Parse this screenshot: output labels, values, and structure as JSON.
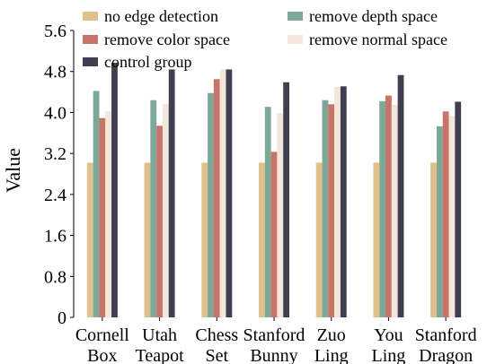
{
  "chart_data": {
    "type": "bar",
    "ylabel": "Value",
    "xlabel": "",
    "title": "",
    "ylim": [
      0,
      5.6
    ],
    "yticks": [
      "0",
      "0.8",
      "1.6",
      "2.4",
      "3.2",
      "4.0",
      "4.8",
      "5.6"
    ],
    "categories": [
      [
        "Cornell",
        "Box"
      ],
      [
        "Utah",
        "Teapot"
      ],
      [
        "Chess",
        "Set"
      ],
      [
        "Stanford",
        "Bunny"
      ],
      [
        "Zuo",
        "Ling"
      ],
      [
        "You",
        "Ling"
      ],
      [
        "Stanford",
        "Dragon"
      ]
    ],
    "series": [
      {
        "name": "no edge detection",
        "color": "#e0c08d",
        "values": [
          3.02,
          3.02,
          3.02,
          3.02,
          3.02,
          3.02,
          3.02
        ]
      },
      {
        "name": "remove depth space",
        "color": "#7ea898",
        "values": [
          4.42,
          4.24,
          4.38,
          4.11,
          4.24,
          4.22,
          3.73
        ]
      },
      {
        "name": "remove color space",
        "color": "#c87468",
        "values": [
          3.89,
          3.74,
          4.65,
          3.23,
          4.16,
          4.33,
          4.02
        ]
      },
      {
        "name": "remove normal space",
        "color": "#f1e7da",
        "values": [
          4.02,
          4.16,
          4.84,
          3.99,
          4.5,
          4.15,
          3.93
        ]
      },
      {
        "name": "control group",
        "color": "#403f52",
        "values": [
          4.97,
          4.84,
          4.84,
          4.59,
          4.51,
          4.73,
          4.21
        ]
      }
    ],
    "legend": "top, two columns",
    "grid": false
  }
}
